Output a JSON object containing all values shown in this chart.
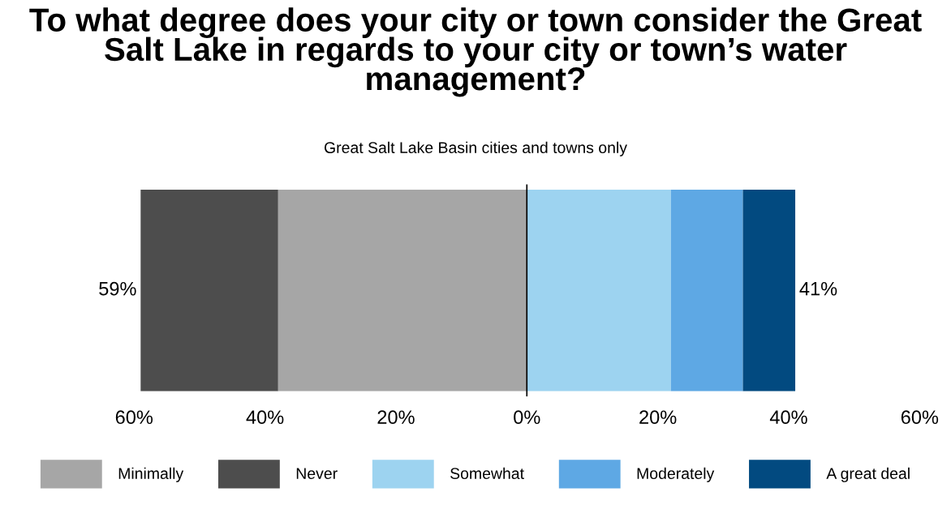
{
  "chart_data": {
    "type": "bar",
    "orientation": "horizontal",
    "stacked": true,
    "title": "To what degree does your city or town consider the Great Salt Lake in regards to your city or town’s water management?",
    "subtitle": "Great Salt Lake Basin cities and towns only",
    "categories": [
      null
    ],
    "series": [
      {
        "name": "Minimally",
        "color": "#a6a6a6",
        "values": [
          -38
        ]
      },
      {
        "name": "Never",
        "color": "#4d4d4d",
        "values": [
          -21
        ]
      },
      {
        "name": "Somewhat",
        "color": "#9dd3f0",
        "values": [
          22
        ]
      },
      {
        "name": "Moderately",
        "color": "#5ea8e4",
        "values": [
          11
        ]
      },
      {
        "name": "A great deal",
        "color": "#024a80",
        "values": [
          8
        ]
      }
    ],
    "annotations": [
      {
        "text": "59%",
        "x": -59
      },
      {
        "text": "41%",
        "x": 41
      }
    ],
    "xlim": [
      -60,
      60
    ],
    "xticks": [
      {
        "value": -60,
        "label": "60%"
      },
      {
        "value": -40,
        "label": "40%"
      },
      {
        "value": -20,
        "label": "20%"
      },
      {
        "value": 0,
        "label": "0%"
      },
      {
        "value": 20,
        "label": "20%"
      },
      {
        "value": 40,
        "label": "40%"
      },
      {
        "value": 60,
        "label": "60%"
      }
    ],
    "ref_lines": [
      {
        "axis": "x",
        "value": 0,
        "color": "#000000"
      }
    ],
    "grid": false,
    "legend": "bottom"
  }
}
